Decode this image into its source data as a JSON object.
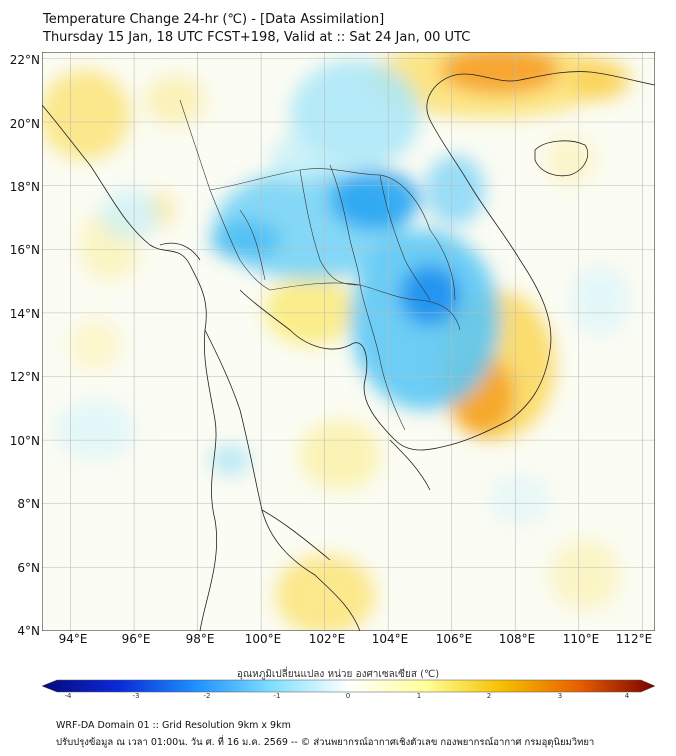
{
  "header": {
    "title": "Temperature Change 24-hr (℃) - [Data Assimilation]",
    "subtitle": "Thursday 15 Jan, 18 UTC FCST+198, Valid at :: Sat 24 Jan, 00 UTC"
  },
  "map": {
    "lat_labels": [
      "22°N",
      "20°N",
      "18°N",
      "16°N",
      "14°N",
      "12°N",
      "10°N",
      "8°N",
      "6°N",
      "4°N"
    ],
    "lon_labels": [
      "94°E",
      "96°E",
      "98°E",
      "100°E",
      "102°E",
      "104°E",
      "106°E",
      "108°E",
      "110°E",
      "112°E"
    ],
    "lat_range": [
      4,
      22.2
    ],
    "lon_range": [
      93.1,
      112.4
    ]
  },
  "colorbar": {
    "title": "อุณหภูมิเปลี่ยนแปลง หน่วย องศาเซลเซียส (℃)",
    "ticks": [
      "-4",
      "-3",
      "-2",
      "-1",
      "0",
      "1",
      "2",
      "3",
      "4"
    ],
    "range": [
      -4,
      4
    ],
    "colors": [
      "#08087a",
      "#0a2ad8",
      "#1e90ff",
      "#7fdfff",
      "#ffffff",
      "#ffff99",
      "#f5c000",
      "#e86000",
      "#7a0000"
    ]
  },
  "footer": {
    "line1": "WRF-DA Domain 01 :: Grid Resolution 9km x 9km",
    "line2": "ปรับปรุงข้อมูล ณ เวลา 01:00น. วัน ศ. ที่ 16 ม.ค. 2569 -- © ส่วนพยากรณ์อากาศเชิงตัวเลข กองพยากรณ์อากาศ กรมอุตุนิยมวิทยา"
  }
}
